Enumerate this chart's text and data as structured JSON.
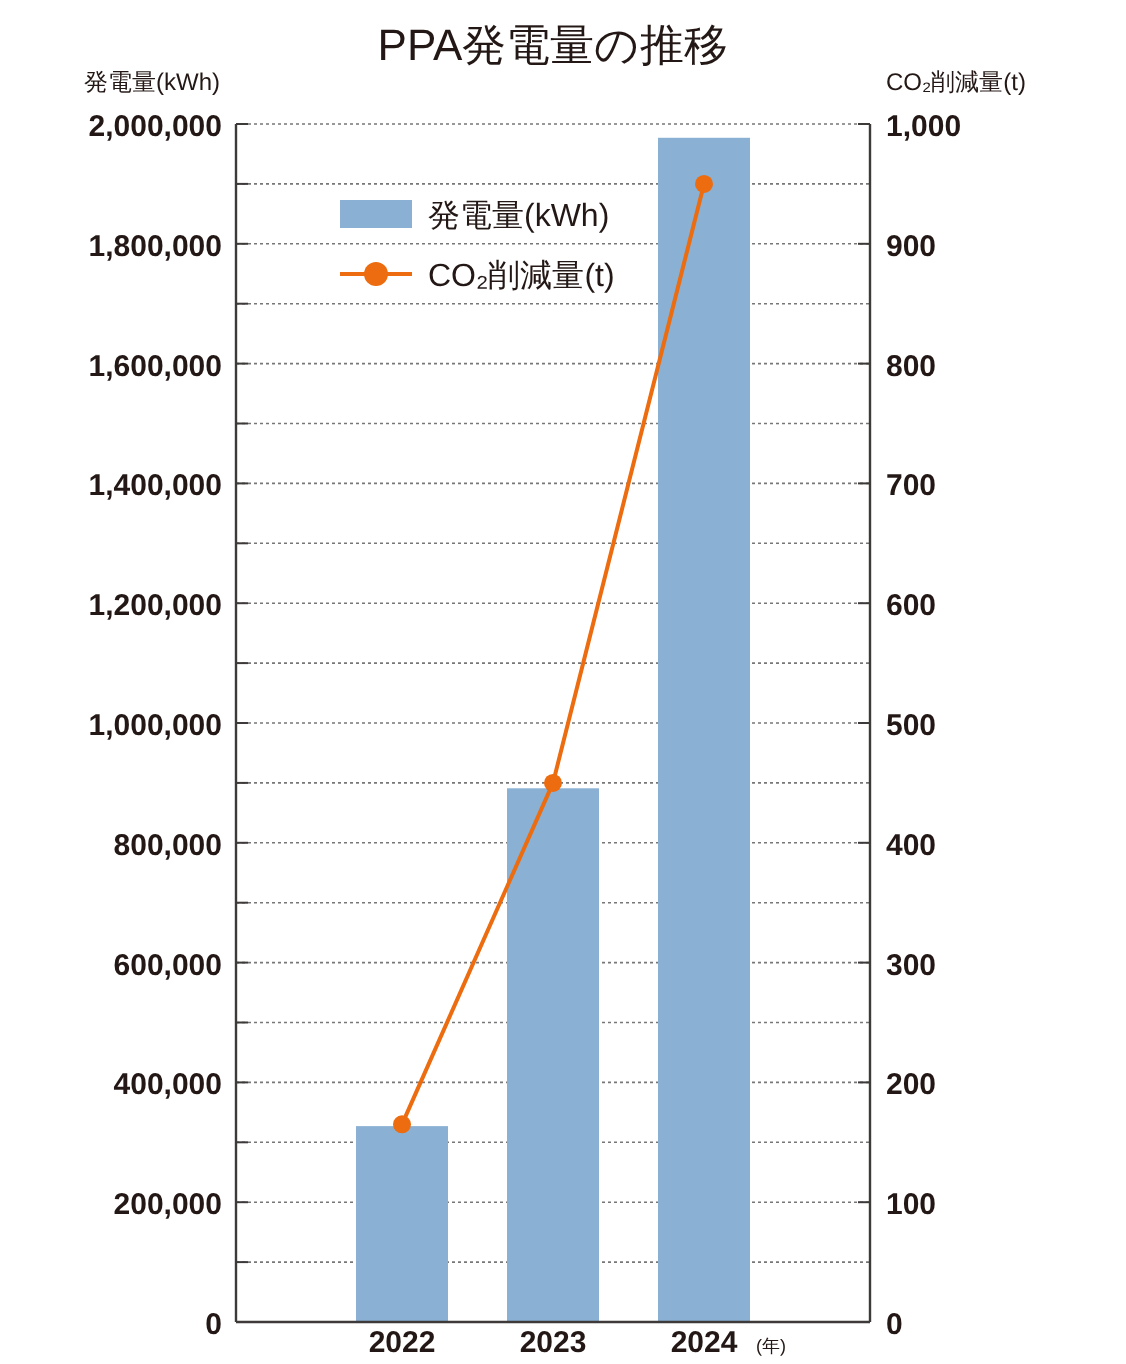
{
  "chart_data": {
    "type": "bar",
    "title": "PPA発電量の推移",
    "ylabel": "発電量(kWh)",
    "y2label": "CO₂削減量(t)",
    "xlabel": "(年)",
    "categories": [
      "2022",
      "2023",
      "2024"
    ],
    "series": [
      {
        "name": "発電量(kWh)",
        "color": "#8ab1d3",
        "values": [
          327000,
          891000,
          1977000
        ]
      },
      {
        "name": "CO₂削減量(t)",
        "type": "line",
        "axis": "y2",
        "color": "#ec6c0f",
        "marker": "circle",
        "values": [
          165,
          450,
          950
        ]
      }
    ],
    "ylim": [
      0,
      2000000
    ],
    "yticks": [
      0,
      {
        "value": 100000,
        "label": null
      },
      {
        "value": 200000,
        "label": "200,000"
      },
      {
        "value": 300000,
        "label": null
      },
      {
        "value": 400000,
        "label": "400,000"
      },
      {
        "value": 500000,
        "label": null
      },
      {
        "value": 600000,
        "label": "600,000"
      },
      {
        "value": 700000,
        "label": null
      },
      {
        "value": 800000,
        "label": "800,000"
      },
      {
        "value": 900000,
        "label": null
      },
      {
        "value": 1000000,
        "label": "1,000,000"
      },
      {
        "value": 1100000,
        "label": null
      },
      {
        "value": 1200000,
        "label": "1,200,000"
      },
      {
        "value": 1300000,
        "label": null
      },
      {
        "value": 1400000,
        "label": "1,400,000"
      },
      {
        "value": 1500000,
        "label": null
      },
      {
        "value": 1600000,
        "label": "1,600,000"
      },
      {
        "value": 1700000,
        "label": null
      },
      {
        "value": 1800000,
        "label": "1,800,000"
      },
      {
        "value": 1900000,
        "label": null
      },
      {
        "value": 2000000,
        "label": "2,000,000"
      }
    ],
    "y2lim": [
      0,
      1000
    ],
    "y2ticks": [
      0,
      100,
      200,
      300,
      400,
      500,
      600,
      700,
      800,
      900,
      {
        "value": 1000,
        "label": "1,000"
      }
    ],
    "grid": "y",
    "legend": "top left"
  }
}
